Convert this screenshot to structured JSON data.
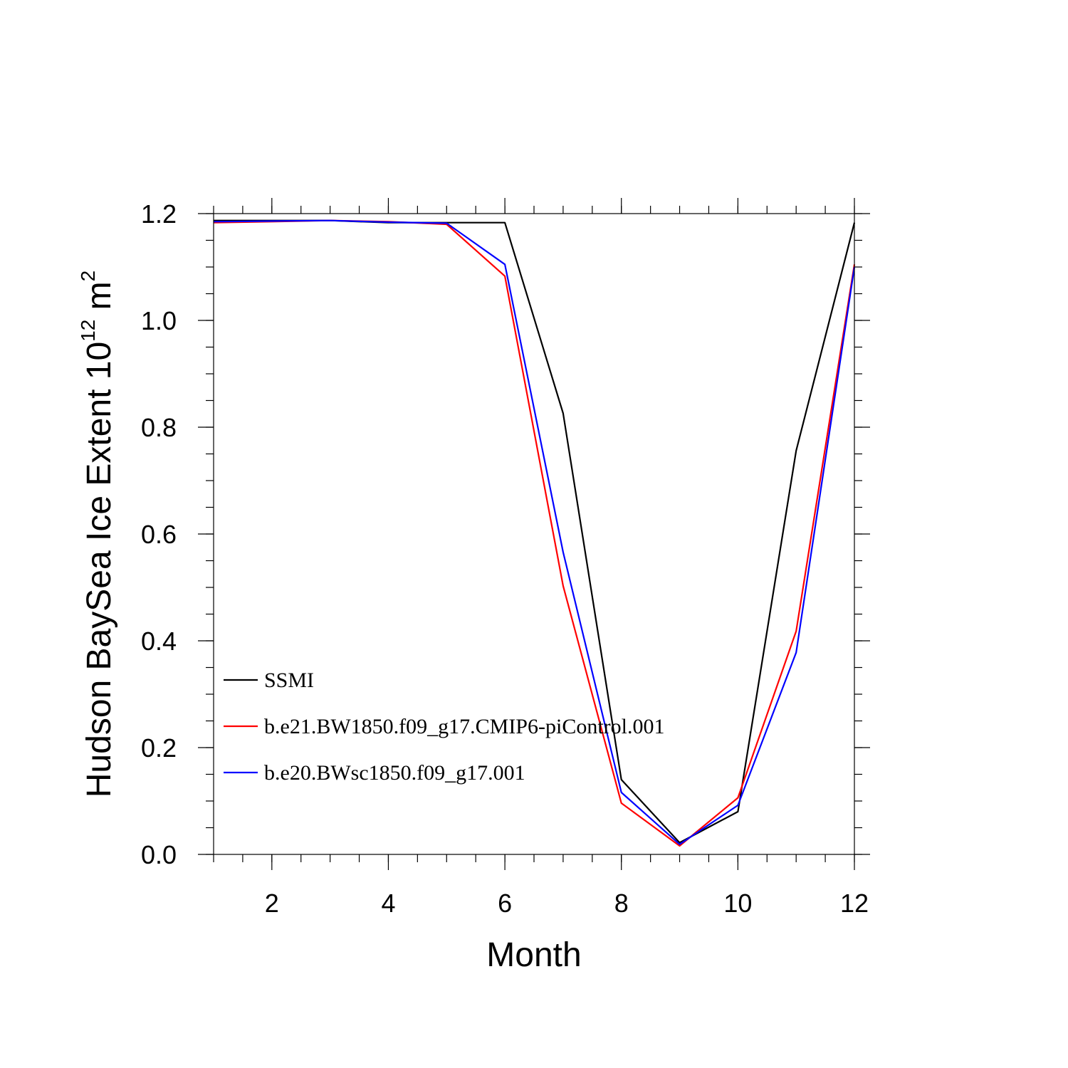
{
  "chart_data": {
    "type": "line",
    "xlabel": "Month",
    "ylabel_base": "Hudson BaySea Ice Extent 10",
    "ylabel_exponent": "12",
    "ylabel_unit": " m",
    "ylabel_unit_exponent": "2",
    "xlim": [
      1,
      12
    ],
    "ylim": [
      0.0,
      1.2
    ],
    "x_ticks": [
      2,
      4,
      6,
      8,
      10,
      12
    ],
    "x_tick_labels": [
      "2",
      "4",
      "6",
      "8",
      "10",
      "12"
    ],
    "y_ticks": [
      0.0,
      0.2,
      0.4,
      0.6,
      0.8,
      1.0,
      1.2
    ],
    "y_tick_labels": [
      "0.0",
      "0.2",
      "0.4",
      "0.6",
      "0.8",
      "1.0",
      "1.2"
    ],
    "x": [
      1,
      2,
      3,
      4,
      5,
      6,
      7,
      8,
      9,
      10,
      11,
      12
    ],
    "series": [
      {
        "name": "SSMI",
        "color": "#000000",
        "values": [
          1.187,
          1.187,
          1.187,
          1.183,
          1.183,
          1.183,
          0.826,
          0.14,
          0.022,
          0.08,
          0.756,
          1.183
        ]
      },
      {
        "name": "b.e21.BW1850.f09_g17.CMIP6-piControl.001",
        "color": "#ff0000",
        "values": [
          1.183,
          1.185,
          1.187,
          1.185,
          1.18,
          1.083,
          0.503,
          0.096,
          0.016,
          0.106,
          0.418,
          1.105
        ]
      },
      {
        "name": "b.e20.BWsc1850.f09_g17.001",
        "color": "#0000ff",
        "values": [
          1.185,
          1.186,
          1.187,
          1.184,
          1.182,
          1.105,
          0.566,
          0.116,
          0.019,
          0.092,
          0.378,
          1.1
        ]
      }
    ],
    "legend_position": "lower-left"
  }
}
